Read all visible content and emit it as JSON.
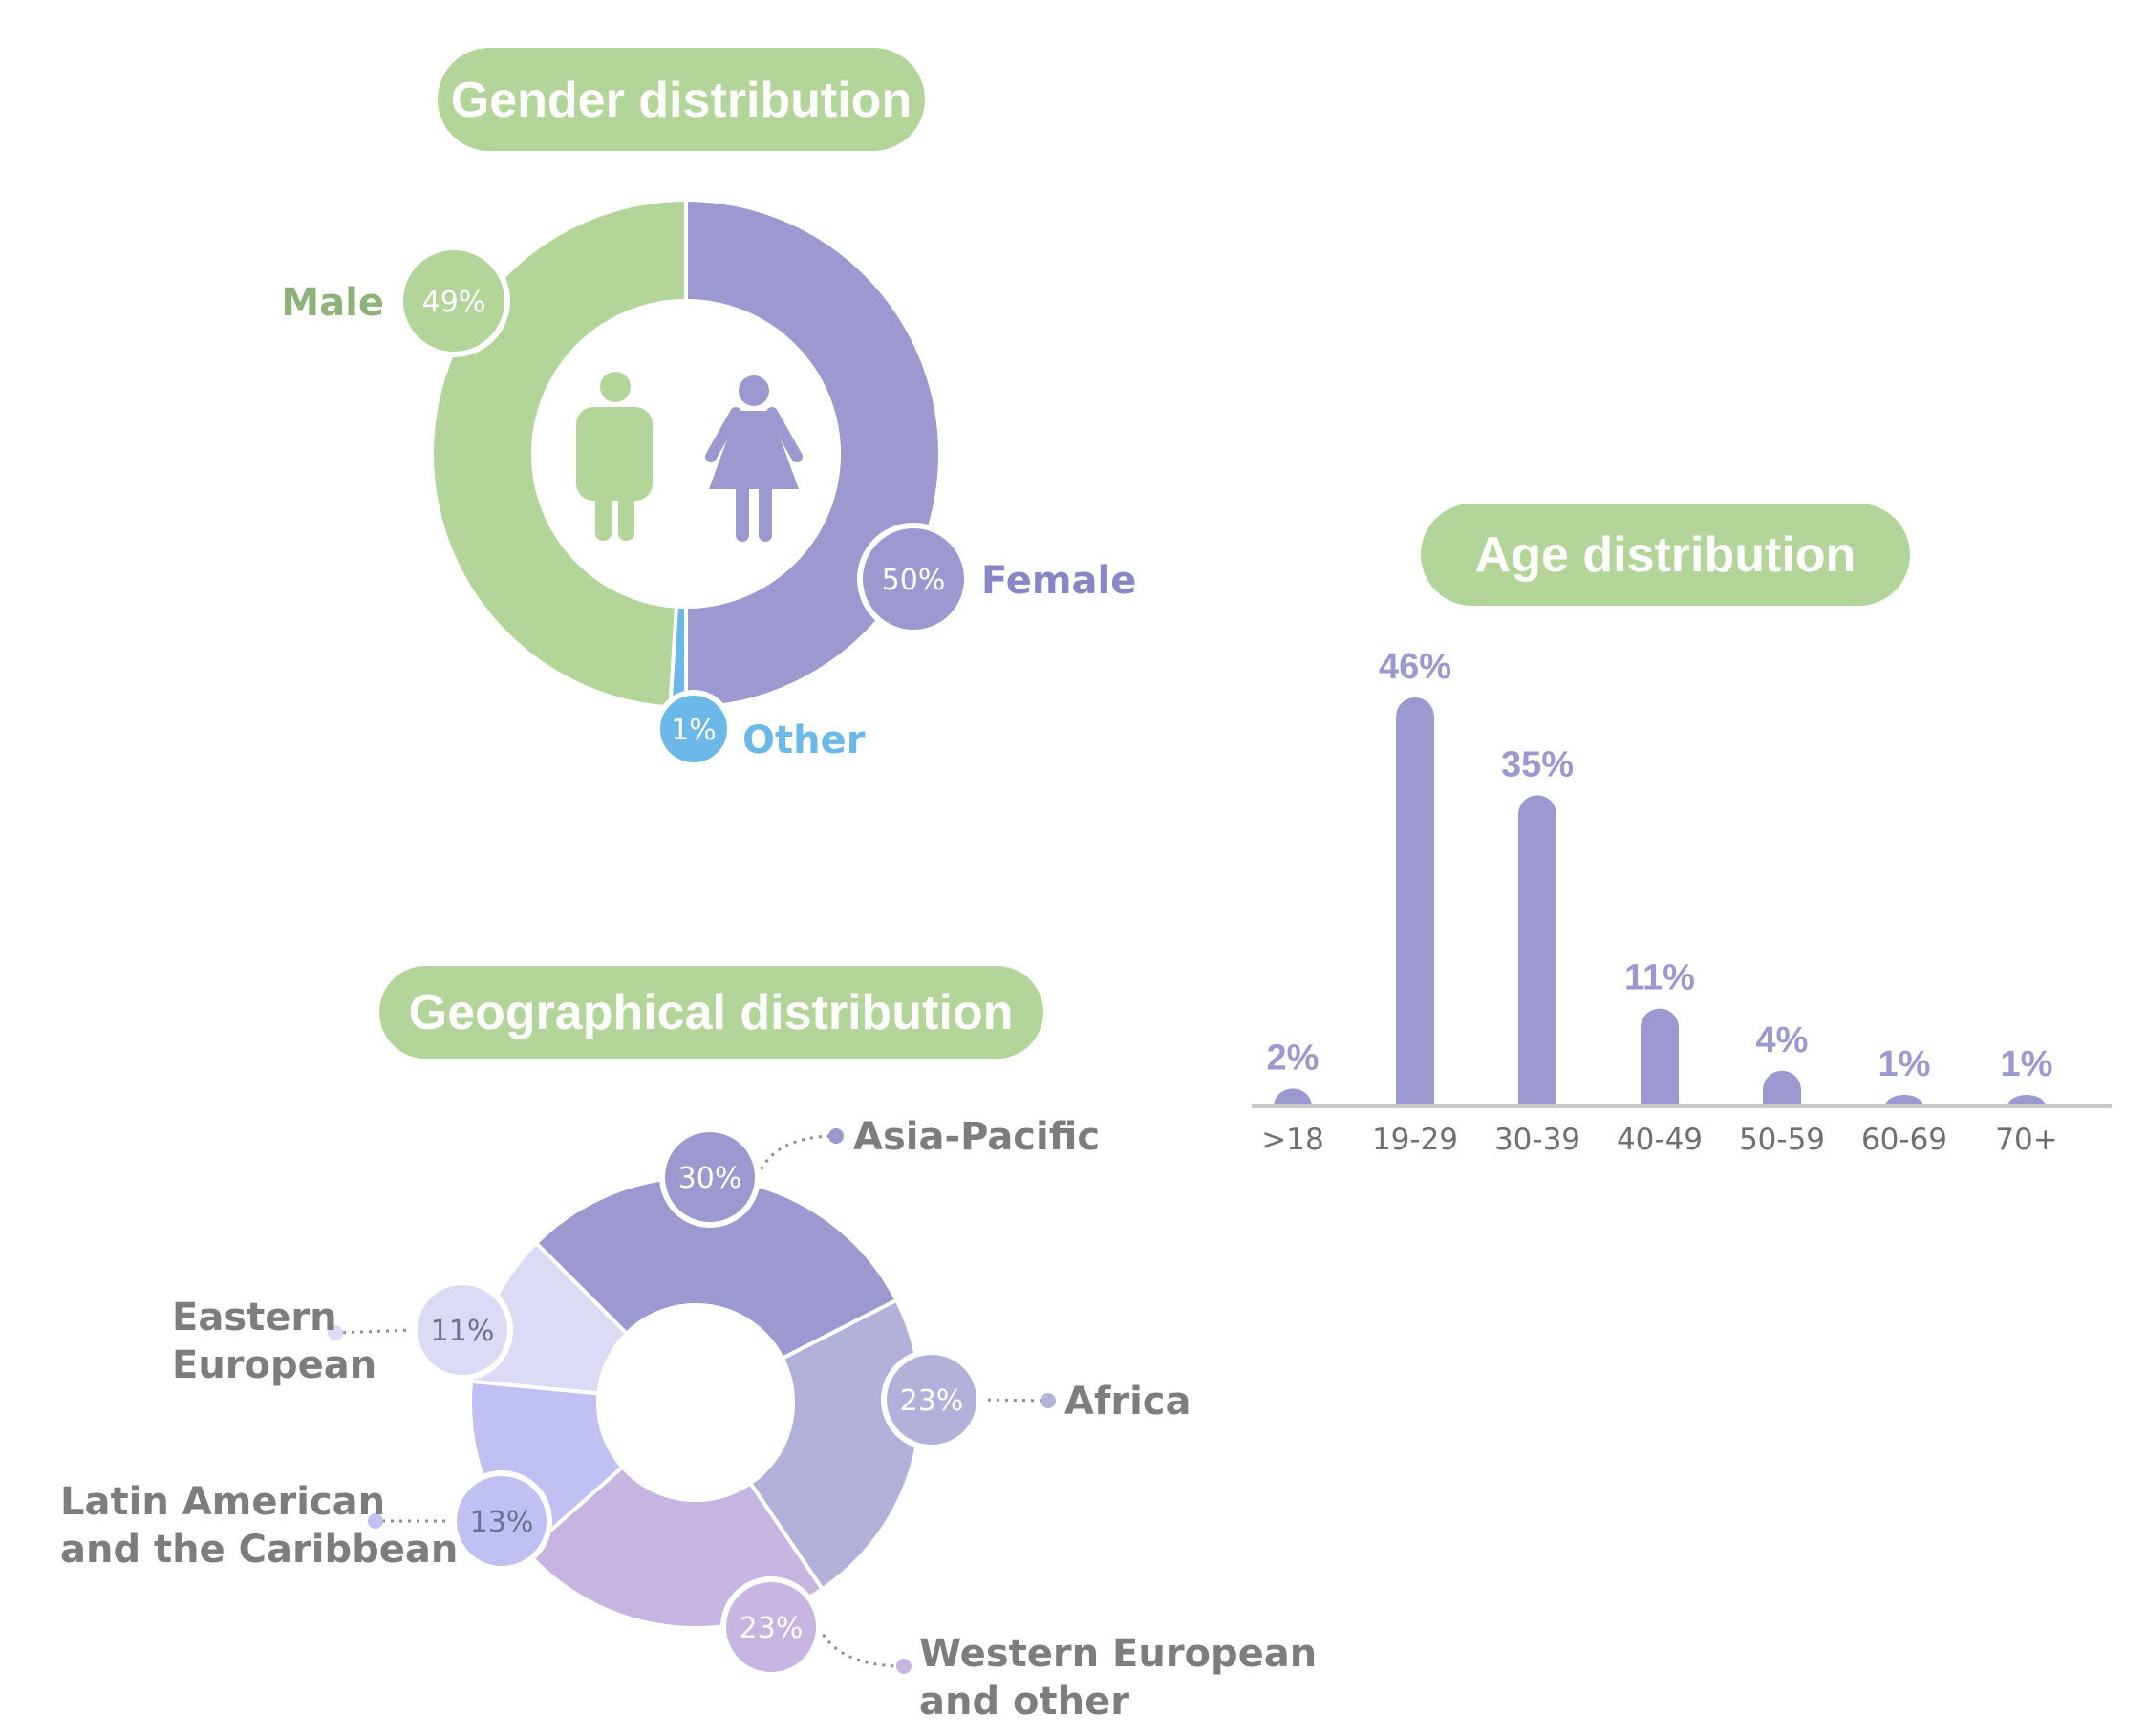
{
  "colors": {
    "green": "#b3d59a",
    "green_text": "#8fb27a",
    "purple": "#9b99cf",
    "purple_text": "#8886c7",
    "blue": "#6cb8e8",
    "grey_text": "#7d7d7d",
    "axis": "#c9c9c9"
  },
  "icons": [
    "male-person-icon",
    "female-person-icon"
  ],
  "chart_data": [
    {
      "type": "pie",
      "title": "Gender distribution",
      "slices": [
        {
          "label": "Female",
          "value": 50,
          "value_label": "50%",
          "color": "#9b99cf"
        },
        {
          "label": "Other",
          "value": 1,
          "value_label": "1%",
          "color": "#6cb8e8"
        },
        {
          "label": "Male",
          "value": 49,
          "value_label": "49%",
          "color": "#b3d59a"
        }
      ]
    },
    {
      "type": "bar",
      "title": "Age distribution",
      "categories": [
        ">18",
        "19-29",
        "30-39",
        "40-49",
        "50-59",
        "60-69",
        "70+"
      ],
      "values": [
        2,
        46,
        35,
        11,
        4,
        1,
        1
      ],
      "value_labels": [
        "2%",
        "46%",
        "35%",
        "11%",
        "4%",
        "1%",
        "1%"
      ],
      "ylim": [
        0,
        46
      ],
      "grid": false,
      "color": "#9b99cf"
    },
    {
      "type": "pie",
      "title": "Geographical distribution",
      "slices": [
        {
          "label": "Asia-Pacific",
          "value": 30,
          "value_label": "30%",
          "color": "#9b99cf"
        },
        {
          "label": "Africa",
          "value": 23,
          "value_label": "23%",
          "color": "#b2b1da"
        },
        {
          "label": "Western European and other",
          "label_lines": [
            "Western European",
            "and other"
          ],
          "value": 23,
          "value_label": "23%",
          "color": "#c6b5e0"
        },
        {
          "label": "Latin American and the Caribbean",
          "label_lines": [
            "Latin American",
            "and the Caribbean"
          ],
          "value": 13,
          "value_label": "13%",
          "color": "#c0c0f3"
        },
        {
          "label": "Eastern European",
          "label_lines": [
            "Eastern",
            "European"
          ],
          "value": 11,
          "value_label": "11%",
          "color": "#dcdbf5"
        }
      ]
    }
  ]
}
